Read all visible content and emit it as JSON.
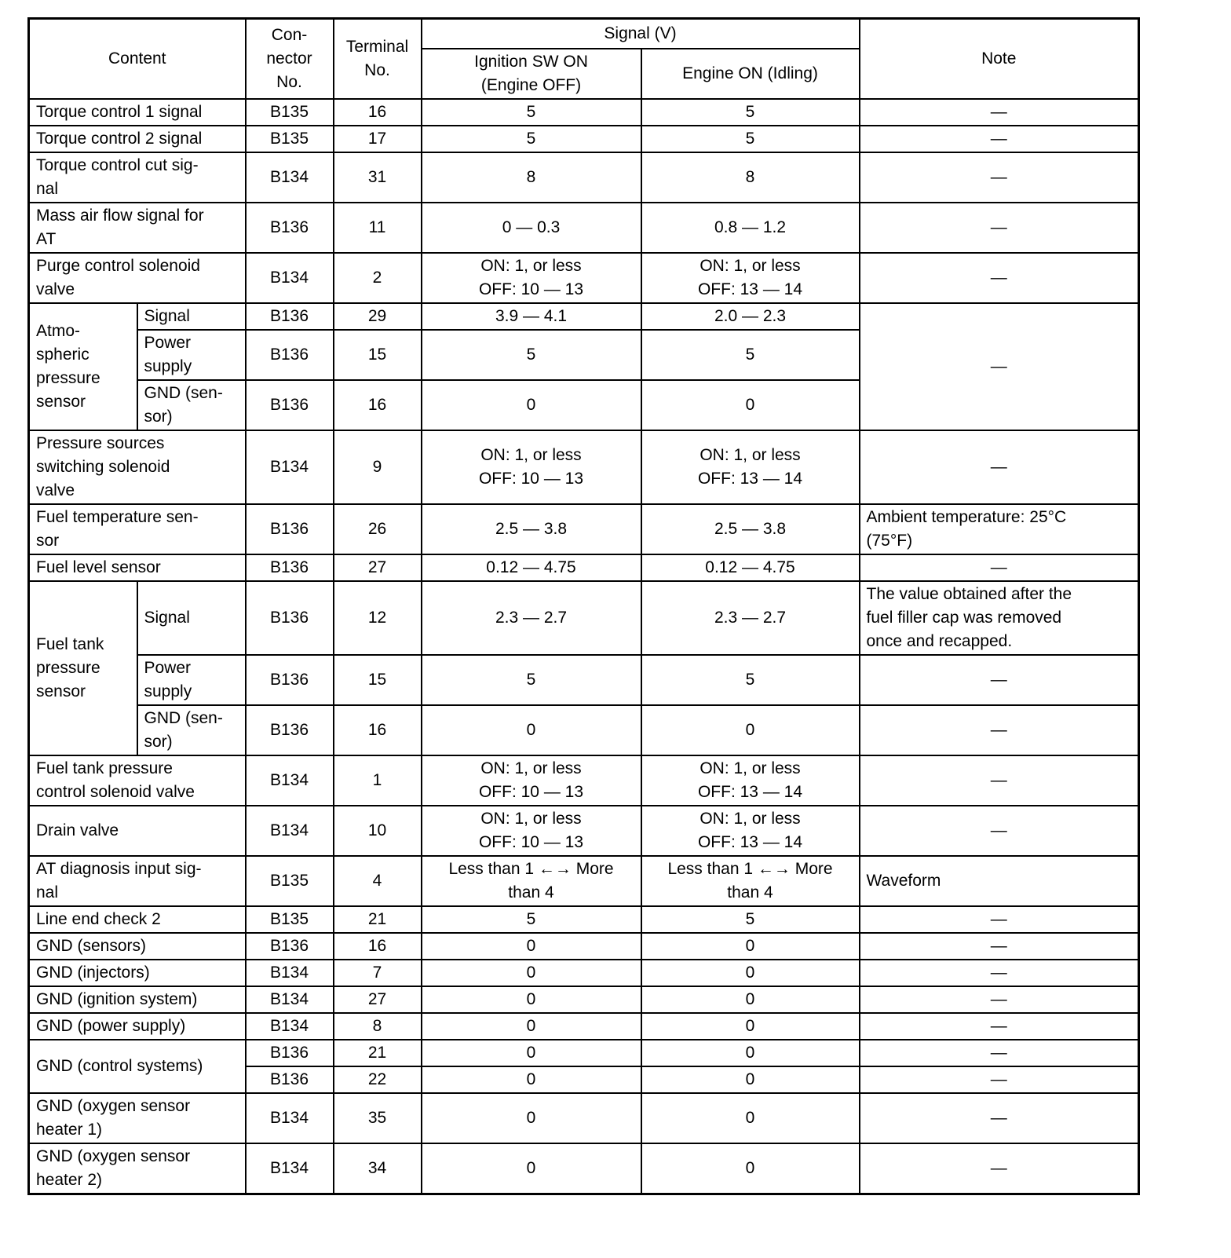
{
  "header": {
    "content": "Content",
    "connector": "Con-\nnector\nNo.",
    "terminal": "Terminal\nNo.",
    "signal": "Signal (V)",
    "ignition": "Ignition SW ON\n(Engine OFF)",
    "engine": "Engine ON (Idling)",
    "note": "Note"
  },
  "rows": [
    {
      "content": "Torque control 1 signal",
      "connector": "B135",
      "terminal": "16",
      "ign": "5",
      "eng": "5",
      "note": "—"
    },
    {
      "content": "Torque control 2 signal",
      "connector": "B135",
      "terminal": "17",
      "ign": "5",
      "eng": "5",
      "note": "—"
    },
    {
      "content": "Torque control cut sig-\nnal",
      "connector": "B134",
      "terminal": "31",
      "ign": "8",
      "eng": "8",
      "note": "—"
    },
    {
      "content": "Mass air flow signal for\nAT",
      "connector": "B136",
      "terminal": "11",
      "ign": "0 — 0.3",
      "eng": "0.8 — 1.2",
      "note": "—"
    },
    {
      "content": "Purge control solenoid\nvalve",
      "connector": "B134",
      "terminal": "2",
      "ign": "ON: 1, or less\nOFF: 10 — 13",
      "eng": "ON: 1, or less\nOFF: 13 — 14",
      "note": "—"
    },
    {
      "content": "Atmo-\nspheric\npressure\nsensor",
      "note": "—",
      "subrows": [
        {
          "sub": "Signal",
          "connector": "B136",
          "terminal": "29",
          "ign": "3.9 — 4.1",
          "eng": "2.0 — 2.3"
        },
        {
          "sub": "Power\nsupply",
          "connector": "B136",
          "terminal": "15",
          "ign": "5",
          "eng": "5"
        },
        {
          "sub": "GND (sen-\nsor)",
          "connector": "B136",
          "terminal": "16",
          "ign": "0",
          "eng": "0"
        }
      ]
    },
    {
      "content": "Pressure sources\nswitching solenoid\nvalve",
      "connector": "B134",
      "terminal": "9",
      "ign": "ON: 1, or less\nOFF: 10 — 13",
      "eng": "ON: 1, or less\nOFF: 13 — 14",
      "note": "—"
    },
    {
      "content": "Fuel temperature sen-\nsor",
      "connector": "B136",
      "terminal": "26",
      "ign": "2.5 — 3.8",
      "eng": "2.5 — 3.8",
      "note": "Ambient temperature: 25°C\n(75°F)"
    },
    {
      "content": "Fuel level sensor",
      "connector": "B136",
      "terminal": "27",
      "ign": "0.12 — 4.75",
      "eng": "0.12 — 4.75",
      "note": "—"
    },
    {
      "content": "Fuel tank\npressure\nsensor",
      "subrows": [
        {
          "sub": "Signal",
          "connector": "B136",
          "terminal": "12",
          "ign": "2.3 — 2.7",
          "eng": "2.3 — 2.7",
          "note": "The value obtained after the\nfuel filler cap was removed\nonce and recapped."
        },
        {
          "sub": "Power\nsupply",
          "connector": "B136",
          "terminal": "15",
          "ign": "5",
          "eng": "5",
          "note": "—"
        },
        {
          "sub": "GND (sen-\nsor)",
          "connector": "B136",
          "terminal": "16",
          "ign": "0",
          "eng": "0",
          "note": "—"
        }
      ]
    },
    {
      "content": "Fuel tank pressure\ncontrol solenoid valve",
      "connector": "B134",
      "terminal": "1",
      "ign": "ON: 1, or less\nOFF: 10 — 13",
      "eng": "ON: 1, or less\nOFF: 13 — 14",
      "note": "—"
    },
    {
      "content": "Drain valve",
      "connector": "B134",
      "terminal": "10",
      "ign": "ON: 1, or less\nOFF: 10 — 13",
      "eng": "ON: 1, or less\nOFF: 13 — 14",
      "note": "—"
    },
    {
      "content": "AT diagnosis input sig-\nnal",
      "connector": "B135",
      "terminal": "4",
      "ign": "Less than 1 ←→ More\nthan 4",
      "eng": "Less than 1 ←→ More\nthan 4",
      "note": "Waveform"
    },
    {
      "content": "Line end check 2",
      "connector": "B135",
      "terminal": "21",
      "ign": "5",
      "eng": "5",
      "note": "—"
    },
    {
      "content": "GND (sensors)",
      "connector": "B136",
      "terminal": "16",
      "ign": "0",
      "eng": "0",
      "note": "—"
    },
    {
      "content": "GND (injectors)",
      "connector": "B134",
      "terminal": "7",
      "ign": "0",
      "eng": "0",
      "note": "—"
    },
    {
      "content": "GND (ignition system)",
      "connector": "B134",
      "terminal": "27",
      "ign": "0",
      "eng": "0",
      "note": "—"
    },
    {
      "content": "GND (power supply)",
      "connector": "B134",
      "terminal": "8",
      "ign": "0",
      "eng": "0",
      "note": "—"
    },
    {
      "content": "GND (control systems)",
      "subrows": [
        {
          "connector": "B136",
          "terminal": "21",
          "ign": "0",
          "eng": "0",
          "note": "—"
        },
        {
          "connector": "B136",
          "terminal": "22",
          "ign": "0",
          "eng": "0",
          "note": "—"
        }
      ]
    },
    {
      "content": "GND (oxygen sensor\nheater 1)",
      "connector": "B134",
      "terminal": "35",
      "ign": "0",
      "eng": "0",
      "note": "—"
    },
    {
      "content": "GND (oxygen sensor\nheater 2)",
      "connector": "B134",
      "terminal": "34",
      "ign": "0",
      "eng": "0",
      "note": "—"
    }
  ]
}
